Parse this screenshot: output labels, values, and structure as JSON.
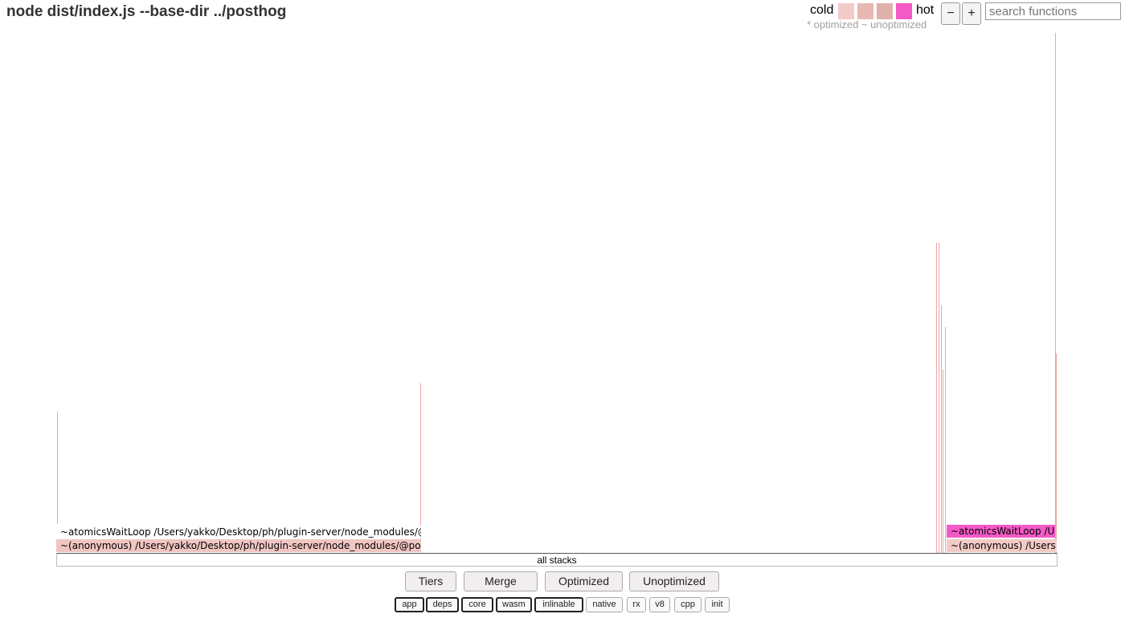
{
  "title": "node dist/index.js --base-dir ../posthog",
  "legend": {
    "cold_label": "cold",
    "hot_label": "hot",
    "subtitle": "* optimized ~ unoptimized",
    "swatches": [
      "#f2cbc8",
      "#e8b9b3",
      "#e0b0aa",
      "#f45ac6"
    ]
  },
  "zoom": {
    "out_label": "−",
    "in_label": "+"
  },
  "search": {
    "placeholder": "search functions",
    "value": ""
  },
  "flamegraph": {
    "root_label": "all stacks",
    "frames": [
      {
        "label": "~atomicsWaitLoop /Users/yakko/Desktop/ph/plugin-server/node_modules/@",
        "color": "#ffffff"
      },
      {
        "label": "~(anonymous) /Users/yakko/Desktop/ph/plugin-server/node_modules/@po",
        "color": "#f0c6c2"
      },
      {
        "label": "~atomicsWaitLoop /Us",
        "color": "#f45ac6"
      },
      {
        "label": "~(anonymous) /Users",
        "color": "#f2cbc7"
      }
    ]
  },
  "tier_buttons": [
    "Tiers",
    "Merge",
    "Optimized",
    "Unoptimized"
  ],
  "filters": [
    {
      "label": "app",
      "active": true
    },
    {
      "label": "deps",
      "active": true
    },
    {
      "label": "core",
      "active": true
    },
    {
      "label": "wasm",
      "active": true
    },
    {
      "label": "inlinable",
      "active": true
    },
    {
      "label": "native",
      "active": false
    },
    {
      "label": "rx",
      "active": false
    },
    {
      "label": "v8",
      "active": false
    },
    {
      "label": "cpp",
      "active": false
    },
    {
      "label": "init",
      "active": false
    }
  ]
}
